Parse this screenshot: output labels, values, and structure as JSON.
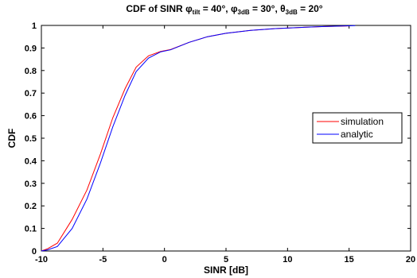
{
  "chart_data": {
    "type": "line",
    "title": {
      "prefix": "CDF of SINR ",
      "phi_tilt": "φ",
      "phi_tilt_sub": "tilt",
      "phi_tilt_val": " = 40°, ",
      "phi_3db": "φ",
      "phi_3db_sub": "3dB",
      "phi_3db_val": " = 30°, ",
      "theta_3db": "θ",
      "theta_3db_sub": "3dB",
      "theta_3db_val": " = 20°"
    },
    "xlabel": "SINR [dB]",
    "ylabel": "CDF",
    "xlim": [
      -10,
      20
    ],
    "ylim": [
      0,
      1
    ],
    "xticks": [
      -10,
      -5,
      0,
      5,
      10,
      15,
      20
    ],
    "yticks": [
      0,
      0.1,
      0.2,
      0.3,
      0.4,
      0.5,
      0.6,
      0.7,
      0.8,
      0.9,
      1
    ],
    "grid": false,
    "legend_position": "right",
    "series": [
      {
        "name": "simulation",
        "color": "#ff0000",
        "x": [
          -10,
          -9.5,
          -8.7,
          -7.5,
          -6.3,
          -5.2,
          -4.2,
          -3.2,
          -2.3,
          -1.3,
          -0.3,
          0.5,
          2,
          3.5,
          5,
          7,
          9,
          11,
          13,
          15
        ],
        "y": [
          0,
          0.01,
          0.035,
          0.14,
          0.27,
          0.43,
          0.59,
          0.72,
          0.815,
          0.865,
          0.885,
          0.893,
          0.925,
          0.95,
          0.965,
          0.978,
          0.986,
          0.991,
          0.995,
          0.998
        ]
      },
      {
        "name": "analytic",
        "color": "#0000ff",
        "x": [
          -10,
          -9.5,
          -8.7,
          -7.5,
          -6.3,
          -5.2,
          -4.2,
          -3.2,
          -2.3,
          -1.3,
          -0.3,
          0.5,
          2,
          3.5,
          5,
          7,
          9,
          11,
          13,
          15.5
        ],
        "y": [
          0,
          0.005,
          0.02,
          0.1,
          0.23,
          0.39,
          0.55,
          0.69,
          0.795,
          0.855,
          0.883,
          0.892,
          0.925,
          0.95,
          0.965,
          0.978,
          0.986,
          0.991,
          0.995,
          0.999
        ]
      }
    ]
  }
}
